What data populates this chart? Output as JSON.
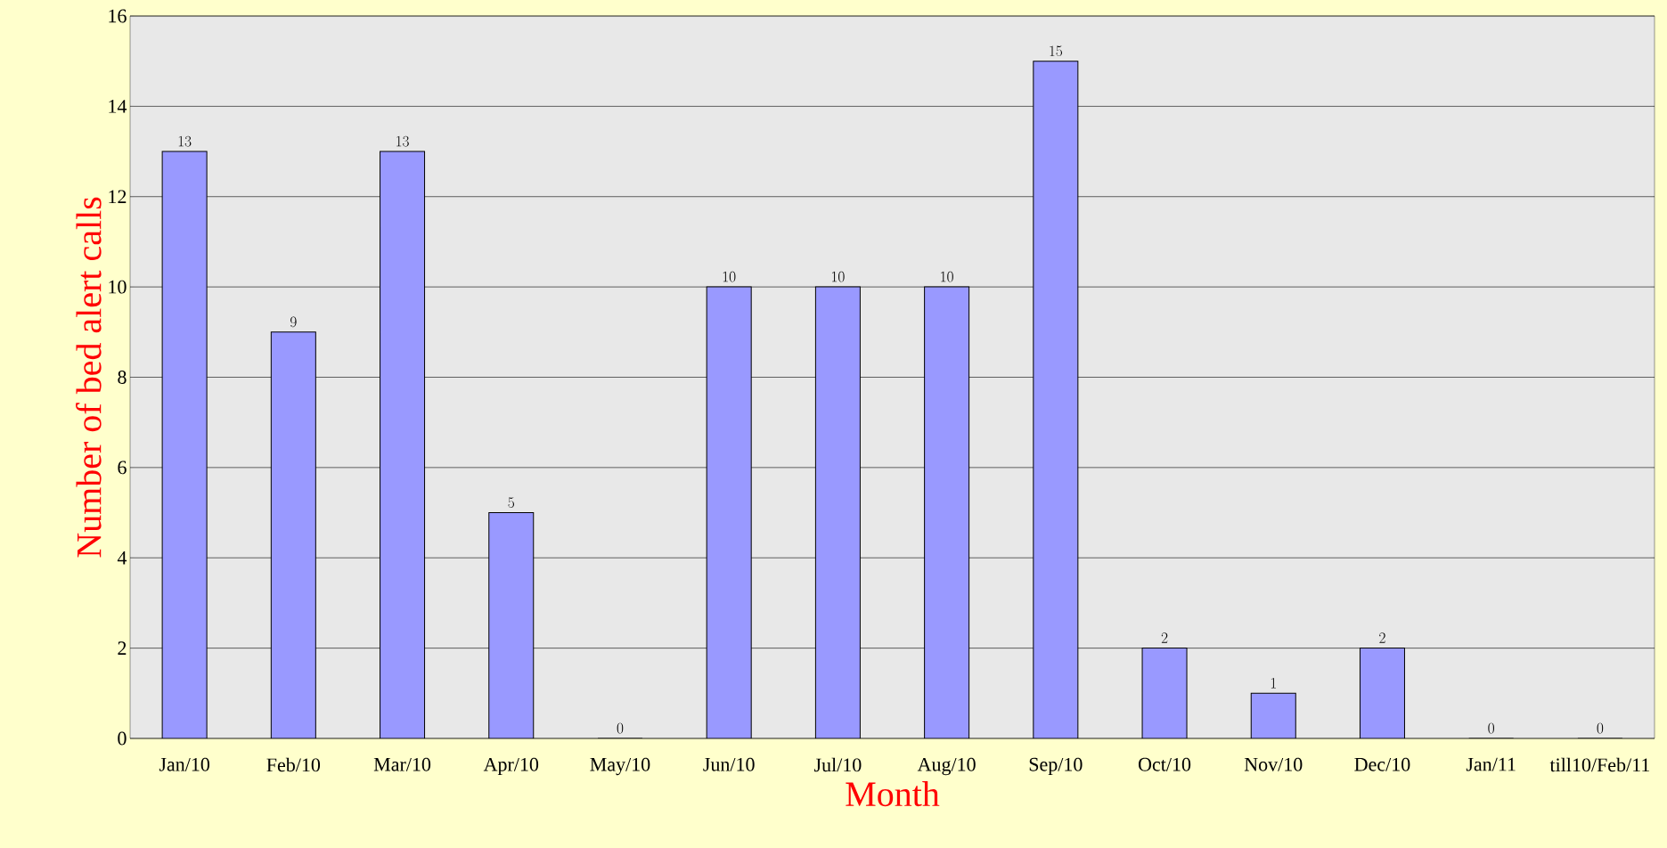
{
  "chart_data": {
    "type": "bar",
    "xlabel": "Month",
    "ylabel": "Number of bed alert calls",
    "categories": [
      "Jan/10",
      "Feb/10",
      "Mar/10",
      "Apr/10",
      "May/10",
      "Jun/10",
      "Jul/10",
      "Aug/10",
      "Sep/10",
      "Oct/10",
      "Nov/10",
      "Dec/10",
      "Jan/11",
      "till10/Feb/11"
    ],
    "values": [
      13,
      9,
      13,
      5,
      0,
      10,
      10,
      10,
      15,
      2,
      1,
      2,
      0,
      0
    ],
    "color": "#9999ff",
    "ylim": [
      0,
      16
    ],
    "yticks": [
      0,
      2,
      4,
      6,
      8,
      10,
      12,
      14,
      16
    ],
    "grid": "y",
    "data_labels": true
  }
}
